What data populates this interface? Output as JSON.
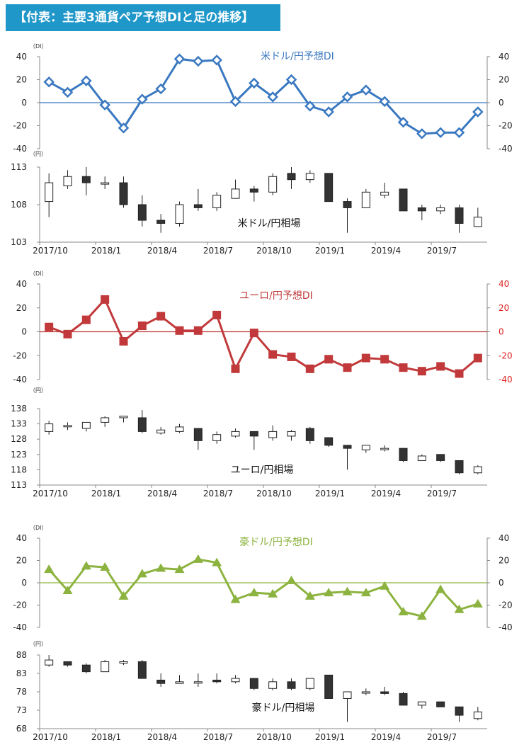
{
  "title": "【付表：主要3通貨ペア予想DIと足の推移】",
  "chart_data": [
    {
      "type": "line",
      "name": "usd-di",
      "title": "米ドル/円予想DI",
      "unit_label": "（DI）",
      "color": "#3a78c0",
      "marker": "diamond",
      "ylim": [
        -40,
        40
      ],
      "yticks": [
        "40",
        "20",
        "0",
        "-20",
        "-40"
      ],
      "right_tick_color": "#222222",
      "values": [
        18,
        9,
        19,
        -2,
        -22,
        3,
        12,
        38,
        36,
        37,
        1,
        17,
        5,
        20,
        -3,
        -8,
        5,
        11,
        1,
        -17,
        -27,
        -26,
        -26,
        -8
      ]
    },
    {
      "type": "candlestick",
      "name": "usd-price",
      "title": "米ドル/円相場",
      "unit_label": "（円）",
      "ylim": [
        103,
        115
      ],
      "yticks": [
        "113",
        "108",
        "103"
      ],
      "xlabels": [
        "2017/10",
        "2018/1",
        "2018/4",
        "2018/7",
        "2018/10",
        "2019/1",
        "2019/4",
        "2019/7"
      ],
      "candles": [
        [
          109.5,
          112.5,
          107,
          114
        ],
        [
          112,
          113.5,
          111.5,
          114.5
        ],
        [
          113.5,
          112.5,
          110.5,
          115
        ],
        [
          112.5,
          112.5,
          111.5,
          113.5
        ],
        [
          112.5,
          109,
          108.5,
          113.5
        ],
        [
          109,
          106.5,
          105.5,
          110.5
        ],
        [
          106.5,
          106,
          104.5,
          107.5
        ],
        [
          106,
          109,
          105.5,
          109.5
        ],
        [
          109,
          108.5,
          108,
          111.5
        ],
        [
          108.5,
          110.5,
          108,
          111
        ],
        [
          110,
          111.5,
          110,
          113
        ],
        [
          111.5,
          111,
          109.5,
          112
        ],
        [
          111,
          113.5,
          110.5,
          114
        ],
        [
          114,
          113,
          111.5,
          115
        ],
        [
          113,
          114,
          112.5,
          114.5
        ],
        [
          114,
          109.5,
          109.5,
          114
        ],
        [
          109.5,
          108.5,
          104.5,
          110
        ],
        [
          108.5,
          111,
          108.5,
          111.5
        ],
        [
          110.5,
          111,
          110,
          112.5
        ],
        [
          111.5,
          108,
          108,
          111.5
        ],
        [
          108.5,
          108,
          106.5,
          109
        ],
        [
          108,
          108.5,
          107.5,
          109
        ],
        [
          108.5,
          106,
          104.5,
          109
        ],
        [
          105.5,
          107,
          105.5,
          108.5
        ]
      ]
    },
    {
      "type": "line",
      "name": "eur-di",
      "title": "ユーロ/円予想DI",
      "unit_label": "（DI）",
      "color": "#c1393a",
      "marker": "square",
      "ylim": [
        -40,
        40
      ],
      "yticks": [
        "40",
        "20",
        "0",
        "-20",
        "-40"
      ],
      "right_tick_color": "#e02020",
      "values": [
        4,
        -2,
        10,
        27,
        -8,
        5,
        13,
        1,
        1,
        14,
        -31,
        -1,
        -19,
        -21,
        -31,
        -23,
        -30,
        -22,
        -23,
        -30,
        -33,
        -29,
        -35,
        -22
      ]
    },
    {
      "type": "candlestick",
      "name": "eur-price",
      "title": "ユーロ/円相場",
      "unit_label": "（円）",
      "ylim": [
        113,
        138
      ],
      "yticks": [
        "138",
        "133",
        "128",
        "123",
        "118",
        "113"
      ],
      "xlabels": [
        "2017/10",
        "2018/1",
        "2018/4",
        "2018/7",
        "2018/10",
        "2019/1",
        "2019/4",
        "2019/7"
      ],
      "candles": [
        [
          130.5,
          133,
          129.5,
          134
        ],
        [
          132.5,
          132.5,
          131,
          133.5
        ],
        [
          131.5,
          133.5,
          130.5,
          133.5
        ],
        [
          133.5,
          135,
          132,
          135.5
        ],
        [
          135,
          135.5,
          133.5,
          135.5
        ],
        [
          135,
          130.5,
          130,
          137.5
        ],
        [
          130,
          131,
          129.5,
          132
        ],
        [
          130.5,
          132,
          130,
          133
        ],
        [
          131.5,
          127.5,
          124.5,
          131.5
        ],
        [
          127.5,
          129.5,
          126.5,
          130.5
        ],
        [
          129,
          130.5,
          128.5,
          131.5
        ],
        [
          130.5,
          129,
          124.5,
          130.5
        ],
        [
          128.5,
          130.5,
          127.5,
          132.5
        ],
        [
          129,
          130.5,
          127.5,
          131
        ],
        [
          131.5,
          127.5,
          126.5,
          132
        ],
        [
          128.5,
          126,
          125.5,
          128.5
        ],
        [
          126,
          125,
          118,
          126
        ],
        [
          124.5,
          126,
          123.5,
          126
        ],
        [
          125,
          125,
          124,
          126
        ],
        [
          125,
          121,
          120.5,
          125
        ],
        [
          121,
          122.5,
          121,
          123
        ],
        [
          123,
          121,
          120.5,
          123
        ],
        [
          121,
          117,
          116.5,
          121
        ],
        [
          117,
          119,
          116.5,
          119.5
        ]
      ]
    },
    {
      "type": "line",
      "name": "aud-di",
      "title": "豪ドル/円予想DI",
      "unit_label": "（DI）",
      "color": "#8cb33f",
      "marker": "triangle",
      "ylim": [
        -40,
        40
      ],
      "yticks": [
        "40",
        "20",
        "0",
        "-20",
        "-40"
      ],
      "right_tick_color": "#222222",
      "values": [
        12,
        -7,
        15,
        14,
        -12,
        8,
        13,
        12,
        21,
        18,
        -15,
        -9,
        -10,
        2,
        -12,
        -9,
        -8,
        -9,
        -3,
        -26,
        -30,
        -6,
        -24,
        -19
      ]
    },
    {
      "type": "candlestick",
      "name": "aud-price",
      "title": "豪ドル/円相場",
      "unit_label": "（円）",
      "ylim": [
        68,
        90
      ],
      "yticks": [
        "88",
        "83",
        "78",
        "73",
        "68"
      ],
      "xlabels": [
        "2017/10",
        "2018/1",
        "2018/4",
        "2018/7",
        "2018/10",
        "2019/1",
        "2019/4",
        "2019/7"
      ],
      "candles": [
        [
          87,
          88.5,
          86.5,
          90
        ],
        [
          88,
          87,
          86.5,
          88
        ],
        [
          87,
          85,
          84.5,
          87.5
        ],
        [
          85,
          88,
          85,
          88.5
        ],
        [
          88,
          88,
          87,
          88.5
        ],
        [
          88,
          83,
          83,
          88.5
        ],
        [
          82.5,
          81.5,
          80.5,
          84.5
        ],
        [
          81.5,
          82,
          81.5,
          84
        ],
        [
          82,
          82,
          80.5,
          84.5
        ],
        [
          82.5,
          82,
          81.5,
          84.5
        ],
        [
          82,
          83,
          81.5,
          84
        ],
        [
          83,
          80,
          79.5,
          83
        ],
        [
          80,
          82,
          79.5,
          83
        ],
        [
          82,
          80,
          79.5,
          83
        ],
        [
          80,
          83,
          79.5,
          83
        ],
        [
          84,
          77,
          77,
          84
        ],
        [
          77,
          79,
          70,
          79
        ],
        [
          79,
          79,
          78,
          80
        ],
        [
          79,
          78.5,
          78,
          80.5
        ],
        [
          78.5,
          75,
          75,
          79
        ],
        [
          75,
          76,
          74,
          76
        ],
        [
          76,
          74.5,
          74.5,
          76
        ],
        [
          74.5,
          72,
          70,
          74.5
        ],
        [
          71,
          73,
          70.5,
          74.5
        ]
      ]
    }
  ]
}
